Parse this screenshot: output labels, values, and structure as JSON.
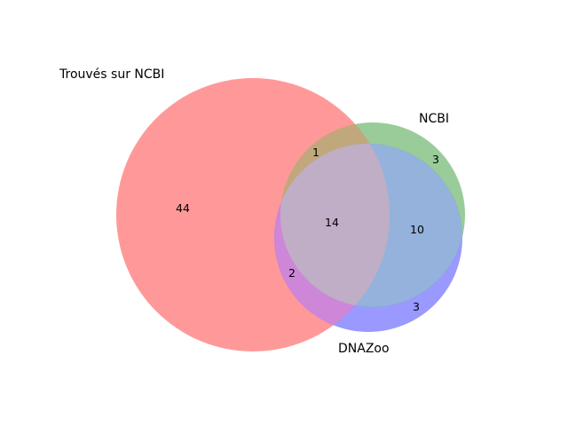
{
  "sets": [
    {
      "key": "A",
      "label": "Trouvés sur NCBI",
      "color": "#ff0000"
    },
    {
      "key": "B",
      "label": "NCBI",
      "color": "#008000"
    },
    {
      "key": "C",
      "label": "DNAZoo",
      "color": "#0000ff"
    }
  ],
  "regions": [
    {
      "sets": "A",
      "count": "44"
    },
    {
      "sets": "B",
      "count": "3"
    },
    {
      "sets": "C",
      "count": "3"
    },
    {
      "sets": "AB",
      "count": "1"
    },
    {
      "sets": "AC",
      "count": "2"
    },
    {
      "sets": "BC",
      "count": "10"
    },
    {
      "sets": "ABC",
      "count": "14"
    }
  ]
}
